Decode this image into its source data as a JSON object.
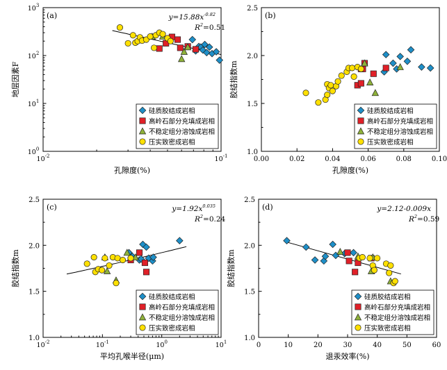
{
  "legend_labels": [
    "硅质胶结成岩相",
    "高岭石部分充填成岩相",
    "不稳定组分溶蚀成岩相",
    "压实致密成岩相"
  ],
  "colors": {
    "silica": "#1e8fc8",
    "kaolinite": "#e02028",
    "dissolution": "#8fb23a",
    "compaction": "#ffe000"
  },
  "chart_data": [
    {
      "type": "scatter",
      "panel": "(a)",
      "xlabel": "孔隙度(%)",
      "ylabel": "地层因素F",
      "xscale": "log",
      "yscale": "log",
      "xlim": [
        0.01,
        0.1
      ],
      "ylim": [
        1,
        1000
      ],
      "xticklabels": [
        "10^-2",
        "10^-1"
      ],
      "yticklabels": [
        "10^0",
        "10^1",
        "10^2",
        "10^3"
      ],
      "equation": {
        "lead": "y=15.88x",
        "exp": "-0.82",
        "r2": "=0.51"
      },
      "fit": {
        "kind": "power",
        "a": 15.88,
        "b": -0.82
      },
      "legend_position": "bottom-right",
      "series": [
        {
          "name": "硅质胶结成岩相",
          "marker": "diamond",
          "x": [
            0.069,
            0.072,
            0.075,
            0.077,
            0.079,
            0.081,
            0.083,
            0.086,
            0.089,
            0.094,
            0.098
          ],
          "y": [
            215,
            125,
            155,
            150,
            130,
            170,
            115,
            150,
            110,
            120,
            80
          ]
        },
        {
          "name": "高岭石部分充填成岩相",
          "marker": "square",
          "x": [
            0.045,
            0.049,
            0.053,
            0.057,
            0.059,
            0.065,
            0.072
          ],
          "y": [
            140,
            180,
            245,
            215,
            145,
            155,
            135
          ]
        },
        {
          "name": "不稳定组分溶蚀成岩相",
          "marker": "triangle",
          "x": [
            0.041,
            0.047,
            0.06,
            0.062,
            0.065
          ],
          "y": [
            250,
            250,
            85,
            120,
            150
          ]
        },
        {
          "name": "压实致密成岩相",
          "marker": "circle",
          "x": [
            0.027,
            0.03,
            0.032,
            0.033,
            0.034,
            0.035,
            0.036,
            0.038,
            0.04,
            0.042,
            0.043,
            0.045,
            0.047,
            0.05,
            0.052
          ],
          "y": [
            385,
            180,
            265,
            185,
            200,
            240,
            205,
            215,
            250,
            145,
            265,
            300,
            280,
            230,
            200
          ]
        }
      ]
    },
    {
      "type": "scatter",
      "panel": "(b)",
      "xlabel": "孔隙度(%)",
      "ylabel": "胶结指数m",
      "xlim": [
        0,
        0.1
      ],
      "ylim": [
        1.0,
        2.5
      ],
      "xticklabels": [
        "0.00",
        "0.02",
        "0.04",
        "0.06",
        "0.08",
        "0.10"
      ],
      "yticklabels": [
        "1.0",
        "1.5",
        "2.0",
        "2.5"
      ],
      "legend_position": "bottom-right",
      "series": [
        {
          "name": "硅质胶结成岩相",
          "marker": "diamond",
          "x": [
            0.069,
            0.07,
            0.074,
            0.076,
            0.078,
            0.082,
            0.084,
            0.09,
            0.095
          ],
          "y": [
            1.83,
            2.01,
            1.92,
            1.86,
            1.99,
            1.94,
            2.06,
            1.88,
            1.87
          ]
        },
        {
          "name": "高岭石部分充填成岩相",
          "marker": "square",
          "x": [
            0.054,
            0.056,
            0.056,
            0.057,
            0.058,
            0.063,
            0.07
          ],
          "y": [
            1.69,
            1.71,
            1.86,
            1.86,
            1.92,
            1.81,
            1.87
          ]
        },
        {
          "name": "不稳定组分溶蚀成岩相",
          "marker": "triangle",
          "x": [
            0.058,
            0.061,
            0.064,
            0.078
          ],
          "y": [
            1.92,
            1.72,
            1.61,
            1.88
          ]
        },
        {
          "name": "压实致密成岩相",
          "marker": "circle",
          "x": [
            0.025,
            0.032,
            0.036,
            0.037,
            0.037,
            0.038,
            0.039,
            0.04,
            0.042,
            0.043,
            0.045,
            0.048,
            0.049,
            0.051,
            0.052,
            0.054,
            0.056
          ],
          "y": [
            1.61,
            1.51,
            1.54,
            1.59,
            1.7,
            1.66,
            1.69,
            1.63,
            1.68,
            1.73,
            1.79,
            1.83,
            1.87,
            1.87,
            1.78,
            1.88,
            1.86
          ]
        }
      ]
    },
    {
      "type": "scatter",
      "panel": "(c)",
      "xlabel": "平均孔喉半径(μm)",
      "ylabel": "胶结指数m",
      "xscale": "log",
      "xlim": [
        0.01,
        10
      ],
      "ylim": [
        1.0,
        2.5
      ],
      "xticklabels": [
        "10^-2",
        "10^-1",
        "10^0",
        "10^1"
      ],
      "yticklabels": [
        "1.0",
        "1.5",
        "2.0",
        "2.5"
      ],
      "equation": {
        "lead": "y=1.92x",
        "exp": "0.035",
        "r2": "=0.24"
      },
      "fit": {
        "kind": "power",
        "a": 1.92,
        "b": 0.035
      },
      "legend_position": "bottom-right",
      "series": [
        {
          "name": "硅质胶结成岩相",
          "marker": "diamond",
          "x": [
            0.28,
            0.32,
            0.42,
            0.45,
            0.48,
            0.55,
            0.6,
            0.7,
            0.72,
            2.0
          ],
          "y": [
            1.92,
            1.88,
            1.84,
            1.85,
            2.01,
            1.98,
            1.86,
            1.83,
            1.87,
            2.05
          ]
        },
        {
          "name": "高岭石部分充填成岩相",
          "marker": "square",
          "x": [
            0.3,
            0.42,
            0.52,
            0.55
          ],
          "y": [
            1.84,
            1.92,
            1.81,
            1.71
          ]
        },
        {
          "name": "不稳定组分溶蚀成岩相",
          "marker": "triangle",
          "x": [
            0.11,
            0.12,
            0.17,
            0.26,
            0.36
          ],
          "y": [
            1.87,
            1.72,
            1.62,
            1.92,
            1.87
          ]
        },
        {
          "name": "压实致密成岩相",
          "marker": "circle",
          "x": [
            0.055,
            0.072,
            0.076,
            0.085,
            0.098,
            0.11,
            0.13,
            0.15,
            0.17,
            0.18,
            0.22,
            0.3
          ],
          "y": [
            1.8,
            1.87,
            1.71,
            1.74,
            1.73,
            1.86,
            1.78,
            1.87,
            1.59,
            1.86,
            1.84,
            1.86
          ]
        }
      ]
    },
    {
      "type": "scatter",
      "panel": "(d)",
      "xlabel": "退汞效率(%)",
      "ylabel": "胶结指数m",
      "xlim": [
        0,
        60
      ],
      "ylim": [
        1.0,
        2.5
      ],
      "xticklabels": [
        "0",
        "10",
        "20",
        "30",
        "40",
        "50",
        "60"
      ],
      "yticklabels": [
        "1.0",
        "1.5",
        "2.0",
        "2.5"
      ],
      "equation": {
        "lead": "y=2.12-0.009x",
        "exp": "",
        "r2": "=0.59"
      },
      "fit": {
        "kind": "linear",
        "a": 2.12,
        "b": -0.009,
        "x": [
          9,
          48
        ]
      },
      "legend_position": "bottom-right",
      "series": [
        {
          "name": "硅质胶结成岩相",
          "marker": "diamond",
          "x": [
            9.5,
            16,
            19,
            22,
            22.5,
            25,
            26,
            29,
            32
          ],
          "y": [
            2.05,
            1.98,
            1.84,
            1.83,
            1.88,
            2.01,
            1.89,
            1.91,
            1.92
          ]
        },
        {
          "name": "高岭石部分充填成岩相",
          "marker": "square",
          "x": [
            30,
            30.5,
            32.5,
            33.5,
            38
          ],
          "y": [
            1.92,
            1.83,
            1.71,
            1.81,
            1.86
          ]
        },
        {
          "name": "不稳定组分溶蚀成岩相",
          "marker": "triangle",
          "x": [
            27.5,
            33.5,
            38,
            38.5,
            44.5
          ],
          "y": [
            1.93,
            1.88,
            1.72,
            1.87,
            1.61
          ]
        },
        {
          "name": "压实致密成岩相",
          "marker": "circle",
          "x": [
            34,
            35,
            37.5,
            38.5,
            39,
            40,
            43,
            44,
            44.5,
            45.5,
            46
          ],
          "y": [
            1.86,
            1.87,
            1.86,
            1.78,
            1.73,
            1.86,
            1.8,
            1.7,
            1.78,
            1.59,
            1.61
          ]
        }
      ]
    }
  ]
}
